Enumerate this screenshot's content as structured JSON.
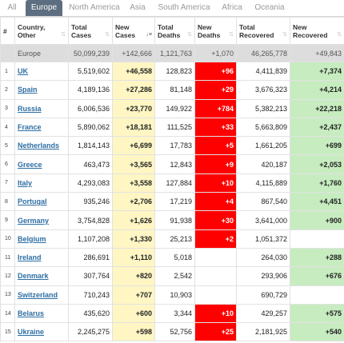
{
  "tabs": [
    "All",
    "Europe",
    "North America",
    "Asia",
    "South America",
    "Africa",
    "Oceania"
  ],
  "active_tab": "Europe",
  "colors": {
    "active_tab": "#5d6e80",
    "new_cases": "#fff6c4",
    "new_deaths": "#ff0000",
    "new_recovered": "#c7ecc0",
    "total_row": "#dddddd",
    "link": "#2d6ea3"
  },
  "headers": {
    "num": "#",
    "country": "Country, Other",
    "total_cases": "Total Cases",
    "new_cases": "New Cases",
    "total_deaths": "Total Deaths",
    "new_deaths": "New Deaths",
    "total_recovered": "Total Recovered",
    "new_recovered": "New Recovered"
  },
  "total": {
    "country": "Europe",
    "total_cases": "50,099,239",
    "new_cases": "+142,666",
    "total_deaths": "1,121,763",
    "new_deaths": "+1,070",
    "total_recovered": "46,265,778",
    "new_recovered": "+49,843"
  },
  "rows": [
    {
      "num": "1",
      "country": "UK",
      "total_cases": "5,519,602",
      "new_cases": "+46,558",
      "total_deaths": "128,823",
      "new_deaths": "+96",
      "total_recovered": "4,411,839",
      "new_recovered": "+7,374"
    },
    {
      "num": "2",
      "country": "Spain",
      "total_cases": "4,189,136",
      "new_cases": "+27,286",
      "total_deaths": "81,148",
      "new_deaths": "+29",
      "total_recovered": "3,676,323",
      "new_recovered": "+4,214"
    },
    {
      "num": "3",
      "country": "Russia",
      "total_cases": "6,006,536",
      "new_cases": "+23,770",
      "total_deaths": "149,922",
      "new_deaths": "+784",
      "total_recovered": "5,382,213",
      "new_recovered": "+22,218"
    },
    {
      "num": "4",
      "country": "France",
      "total_cases": "5,890,062",
      "new_cases": "+18,181",
      "total_deaths": "111,525",
      "new_deaths": "+33",
      "total_recovered": "5,663,809",
      "new_recovered": "+2,437"
    },
    {
      "num": "5",
      "country": "Netherlands",
      "total_cases": "1,814,143",
      "new_cases": "+6,699",
      "total_deaths": "17,783",
      "new_deaths": "+5",
      "total_recovered": "1,661,205",
      "new_recovered": "+699"
    },
    {
      "num": "6",
      "country": "Greece",
      "total_cases": "463,473",
      "new_cases": "+3,565",
      "total_deaths": "12,843",
      "new_deaths": "+9",
      "total_recovered": "420,187",
      "new_recovered": "+2,053"
    },
    {
      "num": "7",
      "country": "Italy",
      "total_cases": "4,293,083",
      "new_cases": "+3,558",
      "total_deaths": "127,884",
      "new_deaths": "+10",
      "total_recovered": "4,115,889",
      "new_recovered": "+1,760"
    },
    {
      "num": "8",
      "country": "Portugal",
      "total_cases": "935,246",
      "new_cases": "+2,706",
      "total_deaths": "17,219",
      "new_deaths": "+4",
      "total_recovered": "867,540",
      "new_recovered": "+4,451"
    },
    {
      "num": "9",
      "country": "Germany",
      "total_cases": "3,754,828",
      "new_cases": "+1,626",
      "total_deaths": "91,938",
      "new_deaths": "+30",
      "total_recovered": "3,641,000",
      "new_recovered": "+900"
    },
    {
      "num": "10",
      "country": "Belgium",
      "total_cases": "1,107,208",
      "new_cases": "+1,330",
      "total_deaths": "25,213",
      "new_deaths": "+2",
      "total_recovered": "1,051,372",
      "new_recovered": ""
    },
    {
      "num": "11",
      "country": "Ireland",
      "total_cases": "286,691",
      "new_cases": "+1,110",
      "total_deaths": "5,018",
      "new_deaths": "",
      "total_recovered": "264,030",
      "new_recovered": "+288"
    },
    {
      "num": "12",
      "country": "Denmark",
      "total_cases": "307,764",
      "new_cases": "+820",
      "total_deaths": "2,542",
      "new_deaths": "",
      "total_recovered": "293,906",
      "new_recovered": "+676"
    },
    {
      "num": "13",
      "country": "Switzerland",
      "total_cases": "710,243",
      "new_cases": "+707",
      "total_deaths": "10,903",
      "new_deaths": "",
      "total_recovered": "690,729",
      "new_recovered": ""
    },
    {
      "num": "14",
      "country": "Belarus",
      "total_cases": "435,620",
      "new_cases": "+600",
      "total_deaths": "3,344",
      "new_deaths": "+10",
      "total_recovered": "429,257",
      "new_recovered": "+575"
    },
    {
      "num": "15",
      "country": "Ukraine",
      "total_cases": "2,245,275",
      "new_cases": "+598",
      "total_deaths": "52,756",
      "new_deaths": "+25",
      "total_recovered": "2,181,925",
      "new_recovered": "+540"
    }
  ]
}
